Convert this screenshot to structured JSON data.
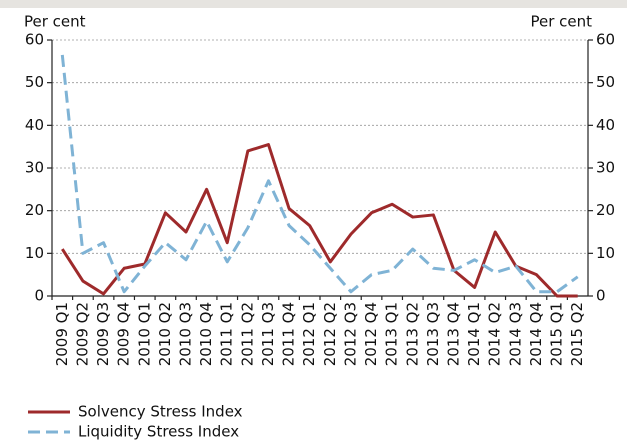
{
  "chart_data": {
    "type": "line",
    "y_label": "Per cent",
    "y2_label": "Per cent",
    "categories": [
      "2009 Q1",
      "2009 Q2",
      "2009 Q3",
      "2009 Q4",
      "2010 Q1",
      "2010 Q2",
      "2010 Q3",
      "2010 Q4",
      "2011 Q1",
      "2011 Q2",
      "2011 Q3",
      "2011 Q4",
      "2012 Q1",
      "2012 Q2",
      "2012 Q3",
      "2012 Q4",
      "2013 Q1",
      "2013 Q2",
      "2013 Q3",
      "2013 Q4",
      "2014 Q1",
      "2014 Q2",
      "2014 Q3",
      "2014 Q4",
      "2015 Q1",
      "2015 Q2"
    ],
    "series": [
      {
        "name": "Solvency Stress Index",
        "color": "#9e2a2b",
        "dash": false,
        "values": [
          11,
          3.5,
          0.5,
          6.5,
          7.5,
          19.5,
          15,
          25,
          12.5,
          34,
          35.5,
          20.5,
          16.5,
          8,
          14.5,
          19.5,
          21.5,
          18.5,
          19,
          6,
          2,
          15,
          7,
          5,
          0,
          0
        ]
      },
      {
        "name": "Liquidity Stress Index",
        "color": "#7fb3d5",
        "dash": true,
        "values": [
          56.5,
          10,
          12.5,
          1,
          7,
          12.5,
          8.5,
          17.5,
          8,
          16,
          27,
          16.5,
          12,
          6.5,
          1,
          5,
          6,
          11,
          6.5,
          6,
          8.5,
          5.5,
          7,
          1,
          1,
          4.5
        ]
      }
    ],
    "ylim": [
      0,
      60
    ],
    "yticks": [
      0,
      10,
      20,
      30,
      40,
      50,
      60
    ],
    "y2lim": [
      0,
      60
    ],
    "y2ticks": [
      0,
      10,
      20,
      30,
      40,
      50,
      60
    ],
    "grid": true
  }
}
